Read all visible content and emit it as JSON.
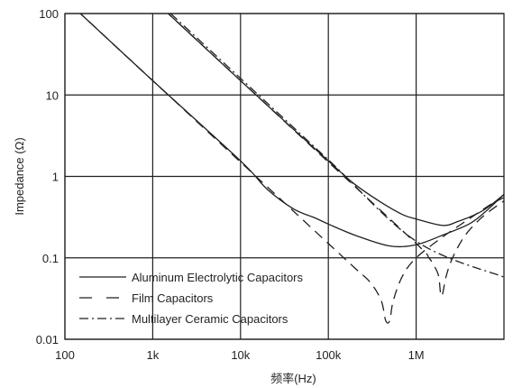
{
  "chart_data": {
    "type": "line",
    "title": "",
    "xlabel": "频率(Hz)",
    "ylabel": "Impedance (Ω)",
    "x_scale": "log",
    "y_scale": "log",
    "xlim": [
      100,
      10000000
    ],
    "ylim": [
      0.01,
      100
    ],
    "grid": true,
    "legend_position": "bottom-left",
    "x_ticks": [
      {
        "value": 100,
        "label": "100"
      },
      {
        "value": 1000,
        "label": "1k"
      },
      {
        "value": 10000,
        "label": "10k"
      },
      {
        "value": 100000,
        "label": "100k"
      },
      {
        "value": 1000000,
        "label": "1M"
      }
    ],
    "y_ticks": [
      {
        "value": 0.01,
        "label": "0.01"
      },
      {
        "value": 0.1,
        "label": "0.1"
      },
      {
        "value": 1,
        "label": "1"
      },
      {
        "value": 10,
        "label": "10"
      },
      {
        "value": 100,
        "label": "100"
      }
    ],
    "series": [
      {
        "name": "Aluminum Electrolytic Capacitors",
        "style": "solid",
        "curves": [
          {
            "x": [
              100,
              1000,
              10000,
              20000,
              40000,
              70000,
              100000,
              200000,
              500000,
              1000000,
              2000000,
              4000000,
              6000000,
              10000000
            ],
            "y": [
              150,
              15,
              1.55,
              0.7,
              0.4,
              0.31,
              0.26,
              0.19,
              0.14,
              0.145,
              0.19,
              0.26,
              0.36,
              0.6
            ]
          },
          {
            "x": [
              1000,
              10000,
              40000,
              100000,
              200000,
              400000,
              700000,
              1000000,
              2000000,
              3000000,
              5000000,
              7000000,
              10000000
            ],
            "y": [
              150,
              15,
              3.8,
              1.55,
              0.8,
              0.48,
              0.34,
              0.3,
              0.25,
              0.28,
              0.35,
              0.44,
              0.6
            ]
          }
        ]
      },
      {
        "name": "Film Capacitors",
        "style": "dashed",
        "curves": [
          {
            "x": [
              100,
              1000,
              10000,
              100000,
              200000,
              300000,
              400000,
              450000,
              500000,
              550000,
              700000,
              1000000,
              2000000,
              4000000,
              7000000,
              10000000
            ],
            "y": [
              150,
              15,
              1.5,
              0.15,
              0.075,
              0.05,
              0.03,
              0.017,
              0.017,
              0.03,
              0.06,
              0.1,
              0.18,
              0.3,
              0.45,
              0.55
            ]
          },
          {
            "x": [
              1000,
              10000,
              100000,
              1000000,
              1400000,
              1600000,
              1800000,
              1900000,
              2000000,
              2200000,
              2600000,
              3500000,
              5000000,
              7000000,
              10000000
            ],
            "y": [
              150,
              15,
              1.5,
              0.15,
              0.1,
              0.08,
              0.06,
              0.036,
              0.036,
              0.06,
              0.1,
              0.18,
              0.28,
              0.38,
              0.5
            ]
          }
        ]
      },
      {
        "name": "Multilayer Ceramic Capacitors",
        "style": "dashdot",
        "curves": [
          {
            "x": [
              1600,
              10000,
              100000,
              1000000,
              10000000
            ],
            "y": [
              100,
              16,
              1.6,
              0.16,
              0.058
            ]
          }
        ]
      }
    ]
  }
}
